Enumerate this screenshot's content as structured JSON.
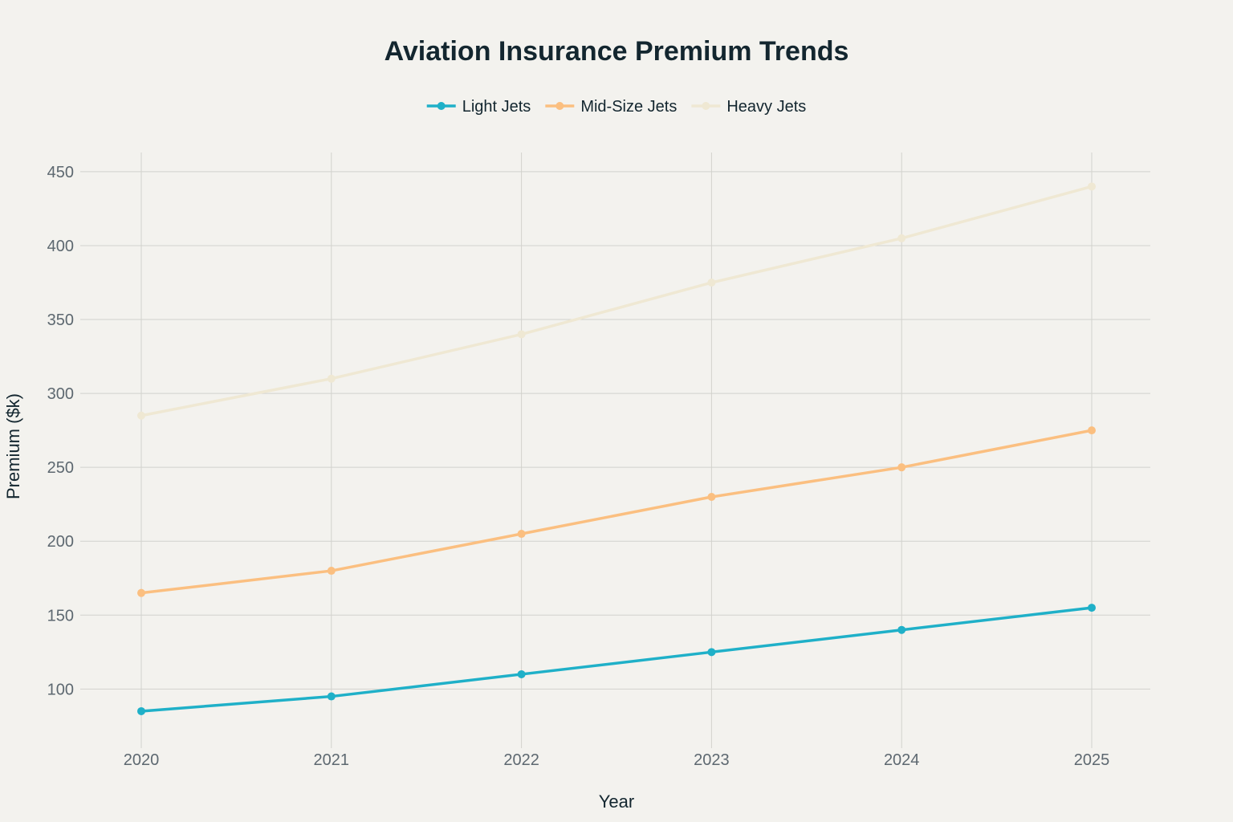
{
  "chart_data": {
    "type": "line",
    "title": "Aviation Insurance Premium Trends",
    "xlabel": "Year",
    "ylabel": "Premium ($k)",
    "x": [
      "2020",
      "2021",
      "2022",
      "2023",
      "2024",
      "2025"
    ],
    "yticks": [
      "100",
      "150",
      "200",
      "250",
      "300",
      "350",
      "400",
      "450"
    ],
    "ylim": [
      60,
      463
    ],
    "grid": true,
    "legend_position": "top-center",
    "series": [
      {
        "name": "Light Jets",
        "color": "#1fb0c8",
        "values": [
          85,
          95,
          110,
          125,
          140,
          155
        ]
      },
      {
        "name": "Mid-Size Jets",
        "color": "#fbbf80",
        "values": [
          165,
          180,
          205,
          230,
          250,
          275
        ]
      },
      {
        "name": "Heavy Jets",
        "color": "#efe8d3",
        "values": [
          285,
          310,
          340,
          375,
          405,
          440
        ]
      }
    ]
  }
}
